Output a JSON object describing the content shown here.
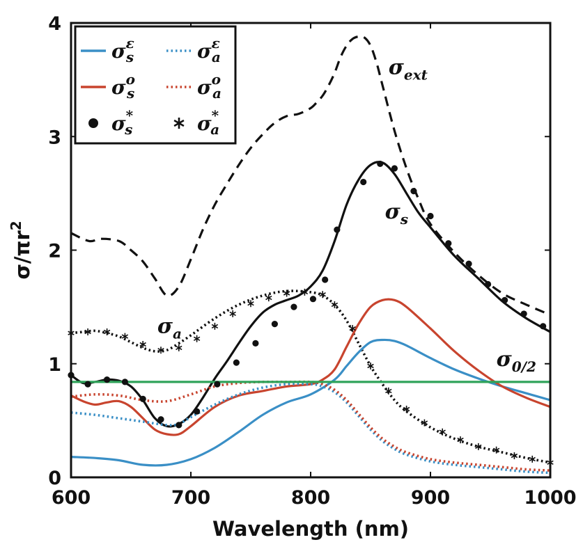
{
  "chart_data": {
    "type": "line",
    "xlabel": "Wavelength (nm)",
    "ylabel": "σ/πr²",
    "ylabel_parts": {
      "main": "σ/πr",
      "sup": "2"
    },
    "xlim": [
      600,
      1000
    ],
    "ylim": [
      0,
      4
    ],
    "xticks": [
      600,
      700,
      800,
      900,
      1000
    ],
    "yticks": [
      0,
      1,
      2,
      3,
      4
    ],
    "grid": false,
    "legend_position": "top-left",
    "annotations": [
      {
        "id": "ext",
        "text": "σ",
        "sub": "ext",
        "x": 865,
        "y": 3.55
      },
      {
        "id": "s",
        "text": "σ",
        "sub": "s",
        "x": 862,
        "y": 2.28
      },
      {
        "id": "a",
        "text": "σ",
        "sub": "a",
        "x": 672,
        "y": 1.27
      },
      {
        "id": "zero",
        "text": "σ",
        "sub": "0/2",
        "x": 955,
        "y": 0.98
      }
    ],
    "series": [
      {
        "name": "σ_ext",
        "style": "dashed",
        "color": "#111111",
        "x": [
          600,
          615,
          625,
          640,
          650,
          660,
          670,
          680,
          690,
          700,
          710,
          720,
          730,
          740,
          750,
          760,
          770,
          780,
          790,
          800,
          805,
          810,
          815,
          820,
          825,
          830,
          835,
          840,
          845,
          850,
          855,
          860,
          870,
          880,
          890,
          900,
          920,
          940,
          960,
          980,
          1000
        ],
        "y": [
          2.15,
          2.08,
          2.1,
          2.08,
          2.0,
          1.9,
          1.75,
          1.6,
          1.68,
          1.92,
          2.18,
          2.4,
          2.58,
          2.75,
          2.9,
          3.02,
          3.12,
          3.18,
          3.2,
          3.25,
          3.3,
          3.36,
          3.45,
          3.56,
          3.7,
          3.8,
          3.86,
          3.88,
          3.87,
          3.8,
          3.65,
          3.45,
          3.05,
          2.72,
          2.45,
          2.23,
          1.98,
          1.78,
          1.62,
          1.52,
          1.43
        ]
      },
      {
        "name": "σ_s",
        "style": "solid",
        "color": "#111111",
        "x": [
          600,
          610,
          620,
          630,
          640,
          650,
          660,
          670,
          680,
          690,
          700,
          710,
          720,
          730,
          740,
          750,
          760,
          770,
          780,
          790,
          800,
          810,
          820,
          830,
          840,
          850,
          860,
          870,
          880,
          890,
          900,
          920,
          940,
          960,
          980,
          1000
        ],
        "y": [
          0.9,
          0.83,
          0.84,
          0.86,
          0.85,
          0.8,
          0.68,
          0.52,
          0.45,
          0.47,
          0.55,
          0.7,
          0.87,
          1.02,
          1.18,
          1.33,
          1.45,
          1.52,
          1.56,
          1.6,
          1.68,
          1.82,
          2.08,
          2.4,
          2.62,
          2.75,
          2.77,
          2.67,
          2.5,
          2.33,
          2.2,
          1.95,
          1.75,
          1.55,
          1.4,
          1.28
        ]
      },
      {
        "name": "σ_a",
        "style": "dotted",
        "color": "#111111",
        "x": [
          600,
          610,
          620,
          630,
          640,
          650,
          660,
          670,
          680,
          690,
          700,
          720,
          740,
          760,
          780,
          800,
          810,
          820,
          830,
          840,
          850,
          860,
          870,
          880,
          900,
          920,
          940,
          960,
          980,
          1000
        ],
        "y": [
          1.27,
          1.28,
          1.29,
          1.27,
          1.24,
          1.19,
          1.14,
          1.11,
          1.12,
          1.18,
          1.25,
          1.4,
          1.52,
          1.6,
          1.64,
          1.63,
          1.6,
          1.52,
          1.38,
          1.18,
          0.98,
          0.82,
          0.68,
          0.58,
          0.44,
          0.34,
          0.27,
          0.22,
          0.17,
          0.13
        ]
      },
      {
        "name": "σ_s^ε",
        "style": "solid",
        "color": "#3a8fc6",
        "x": [
          600,
          620,
          640,
          660,
          680,
          700,
          720,
          740,
          760,
          780,
          800,
          820,
          830,
          840,
          850,
          860,
          870,
          880,
          900,
          920,
          940,
          960,
          980,
          1000
        ],
        "y": [
          0.18,
          0.17,
          0.15,
          0.11,
          0.11,
          0.16,
          0.26,
          0.4,
          0.55,
          0.66,
          0.73,
          0.86,
          0.98,
          1.1,
          1.19,
          1.21,
          1.2,
          1.16,
          1.05,
          0.95,
          0.87,
          0.8,
          0.74,
          0.68
        ]
      },
      {
        "name": "σ_s^o",
        "style": "solid",
        "color": "#c8442e",
        "x": [
          600,
          610,
          620,
          630,
          640,
          650,
          660,
          670,
          680,
          690,
          700,
          720,
          740,
          760,
          780,
          800,
          810,
          820,
          830,
          840,
          850,
          860,
          870,
          880,
          900,
          920,
          940,
          960,
          980,
          1000
        ],
        "y": [
          0.72,
          0.67,
          0.64,
          0.66,
          0.67,
          0.62,
          0.52,
          0.42,
          0.38,
          0.38,
          0.45,
          0.62,
          0.72,
          0.76,
          0.8,
          0.82,
          0.86,
          0.95,
          1.15,
          1.35,
          1.5,
          1.56,
          1.56,
          1.5,
          1.31,
          1.11,
          0.94,
          0.8,
          0.7,
          0.62
        ]
      },
      {
        "name": "σ_a^ε",
        "style": "dotted",
        "color": "#3a8fc6",
        "x": [
          600,
          620,
          640,
          660,
          680,
          690,
          700,
          720,
          740,
          760,
          780,
          800,
          810,
          820,
          830,
          840,
          850,
          860,
          870,
          880,
          900,
          920,
          940,
          960,
          980,
          1000
        ],
        "y": [
          0.57,
          0.55,
          0.52,
          0.49,
          0.46,
          0.47,
          0.53,
          0.64,
          0.73,
          0.79,
          0.82,
          0.82,
          0.8,
          0.75,
          0.66,
          0.54,
          0.42,
          0.32,
          0.25,
          0.2,
          0.14,
          0.11,
          0.09,
          0.07,
          0.05,
          0.04
        ]
      },
      {
        "name": "σ_a^o",
        "style": "dotted",
        "color": "#c8442e",
        "x": [
          600,
          620,
          640,
          660,
          680,
          700,
          720,
          740,
          760,
          780,
          800,
          810,
          820,
          830,
          840,
          850,
          860,
          870,
          880,
          900,
          920,
          940,
          960,
          980,
          1000
        ],
        "y": [
          0.71,
          0.73,
          0.72,
          0.68,
          0.67,
          0.73,
          0.8,
          0.83,
          0.84,
          0.84,
          0.84,
          0.82,
          0.77,
          0.68,
          0.56,
          0.44,
          0.34,
          0.27,
          0.22,
          0.16,
          0.13,
          0.11,
          0.09,
          0.07,
          0.06
        ]
      },
      {
        "name": "σ_0/2",
        "style": "solid",
        "color": "#2fa35a",
        "x": [
          600,
          1000
        ],
        "y": [
          0.84,
          0.84
        ]
      },
      {
        "name": "σ_s^* (markers)",
        "style": "markers-dot",
        "color": "#111111",
        "x": [
          600,
          614,
          630,
          645,
          660,
          675,
          690,
          705,
          722,
          738,
          754,
          770,
          786,
          802,
          812,
          822,
          844,
          858,
          870,
          886,
          900,
          915,
          932,
          948,
          962,
          978,
          994
        ],
        "y": [
          0.9,
          0.82,
          0.86,
          0.84,
          0.69,
          0.51,
          0.46,
          0.58,
          0.82,
          1.01,
          1.18,
          1.35,
          1.5,
          1.57,
          1.74,
          2.18,
          2.6,
          2.76,
          2.72,
          2.52,
          2.3,
          2.06,
          1.88,
          1.7,
          1.56,
          1.44,
          1.33
        ]
      },
      {
        "name": "σ_a^* (markers)",
        "style": "markers-star",
        "color": "#111111",
        "x": [
          600,
          614,
          630,
          645,
          660,
          675,
          690,
          705,
          720,
          735,
          750,
          765,
          780,
          795,
          810,
          820,
          835,
          850,
          865,
          880,
          895,
          910,
          925,
          940,
          955,
          970,
          985,
          1000
        ],
        "y": [
          1.27,
          1.28,
          1.28,
          1.24,
          1.17,
          1.12,
          1.14,
          1.22,
          1.33,
          1.44,
          1.53,
          1.58,
          1.62,
          1.63,
          1.61,
          1.52,
          1.31,
          0.98,
          0.76,
          0.6,
          0.48,
          0.4,
          0.33,
          0.27,
          0.24,
          0.19,
          0.16,
          0.13
        ]
      }
    ],
    "legend": [
      {
        "label": "σ",
        "sup": "ε",
        "sub": "s",
        "style": "solid",
        "color": "#3a8fc6"
      },
      {
        "label": "σ",
        "sup": "ε",
        "sub": "a",
        "style": "dotted",
        "color": "#3a8fc6"
      },
      {
        "label": "σ",
        "sup": "o",
        "sub": "s",
        "style": "solid",
        "color": "#c8442e"
      },
      {
        "label": "σ",
        "sup": "o",
        "sub": "a",
        "style": "dotted",
        "color": "#c8442e"
      },
      {
        "label": "σ",
        "sup": "*",
        "sub": "s",
        "style": "dot",
        "color": "#111111"
      },
      {
        "label": "σ",
        "sup": "*",
        "sub": "a",
        "style": "star",
        "color": "#111111"
      }
    ]
  }
}
